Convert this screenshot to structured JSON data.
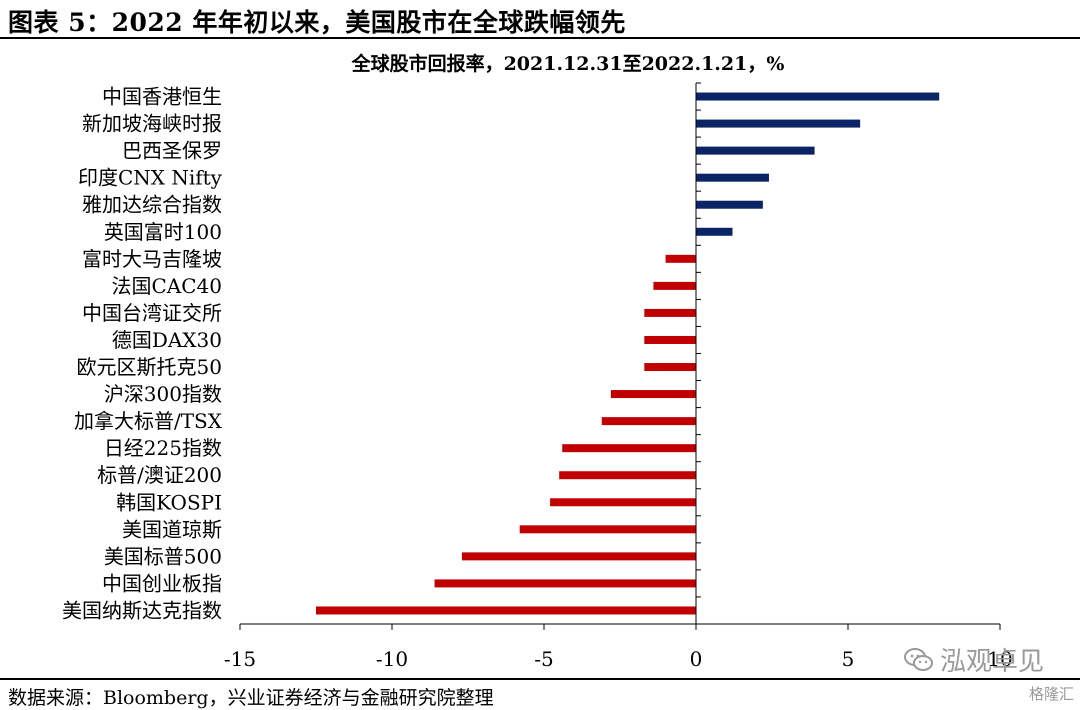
{
  "figure_title": "图表 5：2022 年年初以来，美国股市在全球跌幅领先",
  "source_note": "数据来源：Bloomberg，兴业证券经济与金融研究院整理",
  "watermark": "泓观卓见",
  "corner_mark": "格隆汇",
  "colors": {
    "positive": "#0b2466",
    "negative": "#c00000",
    "axis": "#000000"
  },
  "chart_data": {
    "type": "bar",
    "orientation": "horizontal",
    "title": "全球股市回报率，2021.12.31至2022.1.21，%",
    "xlabel": "",
    "ylabel": "",
    "xlim": [
      -15,
      10
    ],
    "xticks": [
      "-15",
      "-10",
      "-5",
      "0",
      "5",
      "10"
    ],
    "grid": false,
    "legend": "none",
    "categories": [
      "中国香港恒生",
      "新加坡海峡时报",
      "巴西圣保罗",
      "印度CNX Nifty",
      "雅加达综合指数",
      "英国富时100",
      "富时大马吉隆坡",
      "法国CAC40",
      "中国台湾证交所",
      "德国DAX30",
      "欧元区斯托克50",
      "沪深300指数",
      "加拿大标普/TSX",
      "日经225指数",
      "标普/澳证200",
      "韩国KOSPI",
      "美国道琼斯",
      "美国标普500",
      "中国创业板指",
      "美国纳斯达克指数"
    ],
    "values": [
      8.0,
      5.4,
      3.9,
      2.4,
      2.2,
      1.2,
      -1.0,
      -1.4,
      -1.7,
      -1.7,
      -1.7,
      -2.8,
      -3.1,
      -4.4,
      -4.5,
      -4.8,
      -5.8,
      -7.7,
      -8.6,
      -12.5
    ]
  }
}
